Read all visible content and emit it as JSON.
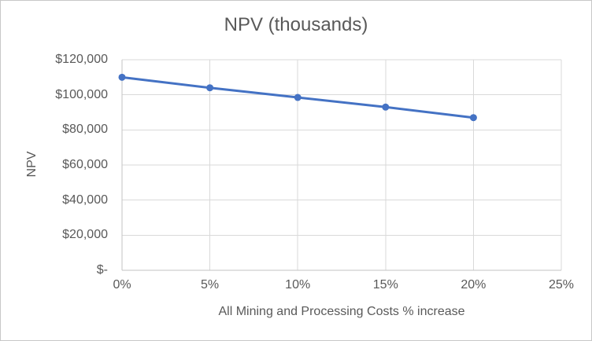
{
  "chart": {
    "title": "NPV (thousands)",
    "y_axis_title": "NPV",
    "x_axis_title": "All Mining and Processing Costs % increase",
    "y_tick_labels": [
      "$120,000",
      "$100,000",
      "$80,000",
      "$60,000",
      "$40,000",
      "$20,000",
      "$-"
    ],
    "x_tick_labels": [
      "0%",
      "5%",
      "10%",
      "15%",
      "20%",
      "25%"
    ]
  },
  "chart_data": {
    "type": "line",
    "title": "NPV (thousands)",
    "xlabel": "All Mining and Processing Costs % increase",
    "ylabel": "NPV",
    "categories": [
      "0%",
      "5%",
      "10%",
      "15%",
      "20%"
    ],
    "x": [
      0,
      5,
      10,
      15,
      20
    ],
    "values": [
      110000,
      104000,
      98500,
      93000,
      87000
    ],
    "xlim": [
      0,
      25
    ],
    "ylim": [
      0,
      120000
    ],
    "x_tick_step": 5,
    "y_tick_step": 20000,
    "grid": true,
    "legend": "none",
    "marker": "circle"
  },
  "colors": {
    "line": "#4472C4",
    "marker": "#4472C4",
    "grid": "#D9D9D9",
    "axis": "#C3C3C3",
    "text": "#595959",
    "border": "#C8C8C8",
    "background": "#FFFFFF"
  }
}
